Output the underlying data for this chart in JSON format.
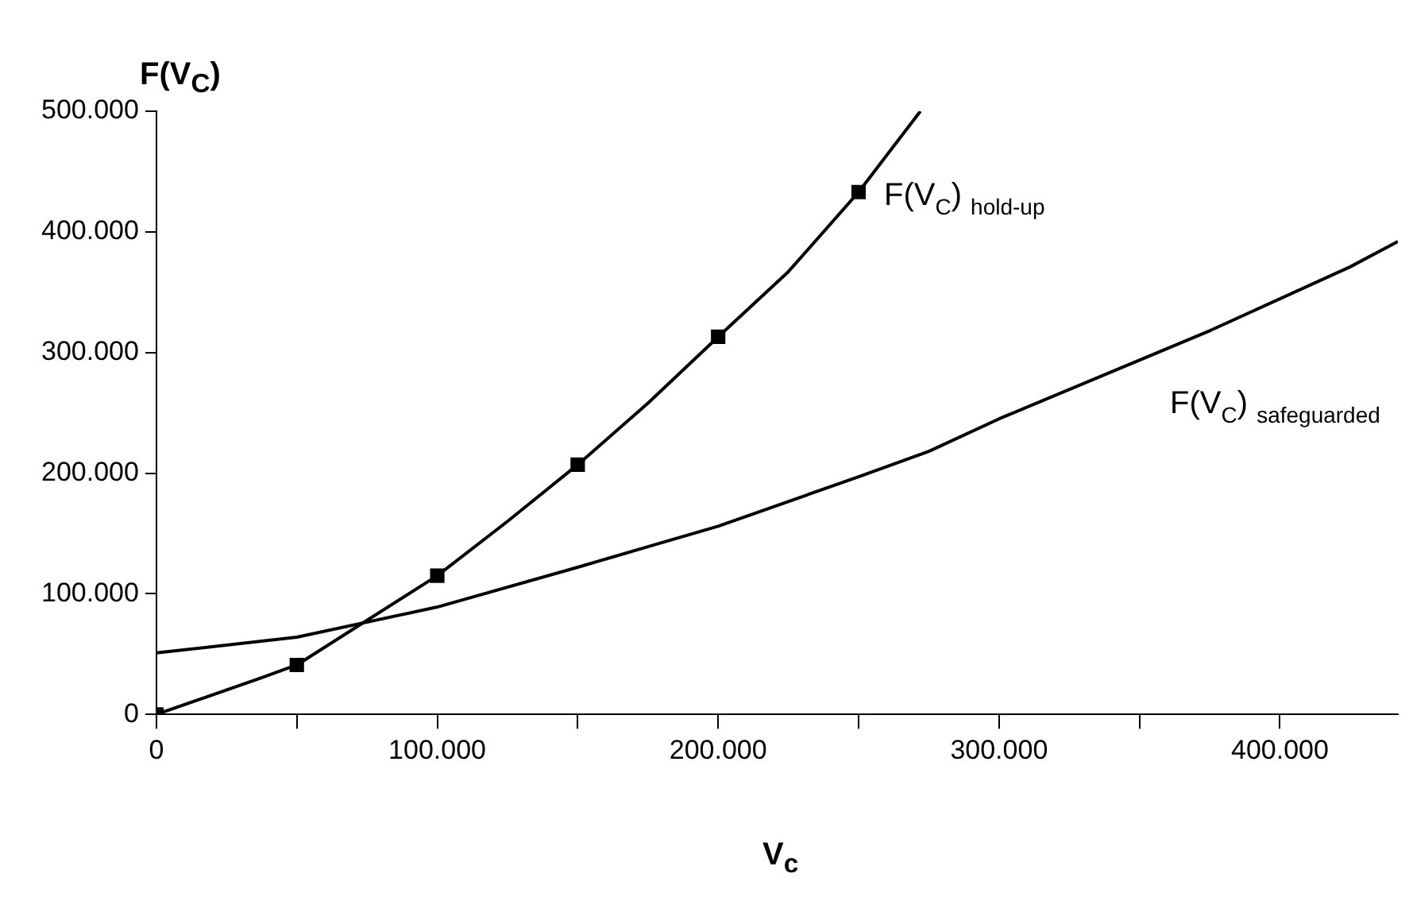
{
  "chart_data": {
    "type": "line",
    "xlabel": "V$_{c}$",
    "ylabel": "F(V$_{C}$)",
    "xlim": [
      0,
      442000
    ],
    "ylim": [
      0,
      500000
    ],
    "xticks": [
      {
        "value": 0,
        "label": "0"
      },
      {
        "value": 50000,
        "label": null
      },
      {
        "value": 100000,
        "label": "100.000"
      },
      {
        "value": 150000,
        "label": null
      },
      {
        "value": 200000,
        "label": "200.000"
      },
      {
        "value": 250000,
        "label": null
      },
      {
        "value": 300000,
        "label": "300.000"
      },
      {
        "value": 350000,
        "label": null
      },
      {
        "value": 400000,
        "label": "400.000"
      }
    ],
    "yticks": [
      {
        "value": 0,
        "label": "0"
      },
      {
        "value": 100000,
        "label": "100.000"
      },
      {
        "value": 200000,
        "label": "200.000"
      },
      {
        "value": 300000,
        "label": "300.000"
      },
      {
        "value": 400000,
        "label": "400.000"
      },
      {
        "value": 500000,
        "label": "500.000"
      }
    ],
    "grid": false,
    "legend": false,
    "series": [
      {
        "name": "F(V$_{C}$) $_{hold-up}$",
        "type": "line",
        "color": "#000000",
        "marker": "none",
        "x": [
          0,
          37000,
          50000,
          100000,
          125000,
          150000,
          175000,
          200000,
          225000,
          250000,
          272000
        ],
        "values": [
          0,
          30000,
          41000,
          115000,
          160000,
          207000,
          258000,
          313000,
          367000,
          433000,
          500000
        ]
      },
      {
        "type": "scatter",
        "color": "#000000",
        "marker": "square",
        "x": [
          0,
          50000,
          100000,
          150000,
          200000,
          250000
        ],
        "values": [
          0,
          41000,
          115000,
          207000,
          313000,
          433000
        ]
      },
      {
        "name": "F(V$_{C}$) $_{safeguarded}$",
        "type": "line",
        "color": "#000000",
        "marker": "none",
        "x": [
          0,
          50000,
          100000,
          150000,
          175000,
          200000,
          250000,
          275000,
          300000,
          375000,
          425000,
          442000
        ],
        "values": [
          51000,
          64000,
          89000,
          122000,
          139000,
          156000,
          197000,
          218000,
          245000,
          318000,
          371000,
          392000
        ]
      }
    ]
  }
}
